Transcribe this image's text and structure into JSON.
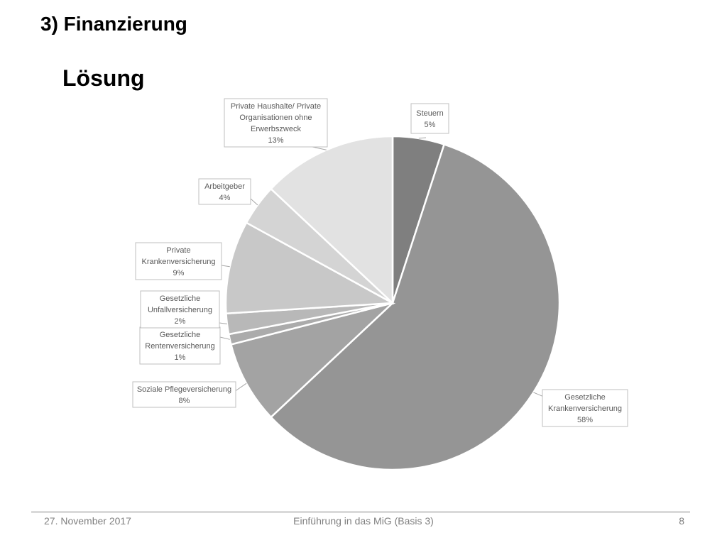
{
  "slide": {
    "title": "3) Finanzierung",
    "subtitle": "Lösung"
  },
  "footer": {
    "date": "27. November 2017",
    "center": "Einführung in das MiG (Basis 3)",
    "page": "8"
  },
  "chart_data": {
    "type": "pie",
    "title": "",
    "legend": "none",
    "slices": [
      {
        "label": [
          "Steuern"
        ],
        "value": 5,
        "percent_label": "5%",
        "color": "#7f7f7f"
      },
      {
        "label": [
          "Gesetzliche",
          "Krankenversicherung"
        ],
        "value": 58,
        "percent_label": "58%",
        "color": "#959595"
      },
      {
        "label": [
          "Soziale Pflegeversicherung"
        ],
        "value": 8,
        "percent_label": "8%",
        "color": "#a3a3a3"
      },
      {
        "label": [
          "Gesetzliche",
          "Rentenversicherung"
        ],
        "value": 1,
        "percent_label": "1%",
        "color": "#ababab"
      },
      {
        "label": [
          "Gesetzliche",
          "Unfallversicherung"
        ],
        "value": 2,
        "percent_label": "2%",
        "color": "#b8b8b8"
      },
      {
        "label": [
          "Private",
          "Krankenversicherung"
        ],
        "value": 9,
        "percent_label": "9%",
        "color": "#c8c8c8"
      },
      {
        "label": [
          "Arbeitgeber"
        ],
        "value": 4,
        "percent_label": "4%",
        "color": "#d4d4d4"
      },
      {
        "label": [
          "Private Haushalte/ Private",
          "Organisationen ohne",
          "Erwerbszweck"
        ],
        "value": 13,
        "percent_label": "13%",
        "color": "#e2e2e2"
      }
    ]
  }
}
